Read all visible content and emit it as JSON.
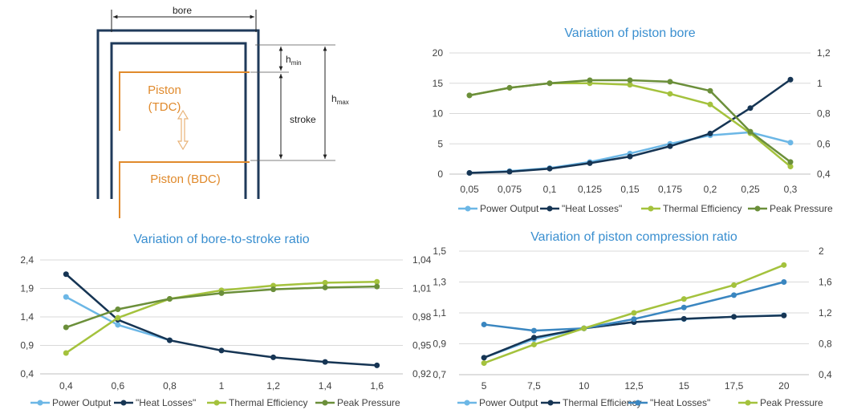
{
  "diagram": {
    "bore_label": "bore",
    "hmin_label": "h",
    "hmin_sub": "min",
    "hmax_label": "h",
    "hmax_sub": "max",
    "stroke_label": "stroke",
    "piston_tdc_line1": "Piston",
    "piston_tdc_line2": "(TDC)",
    "piston_bdc_label": "Piston (BDC)",
    "wall_color": "#1f3a5a",
    "piston_color": "#e08a2c"
  },
  "colors": {
    "power_output": "#6cb7e6",
    "heat_losses": "#163554",
    "thermal_efficiency": "#a4c23d",
    "peak_pressure": "#6b8f3a",
    "title": "#3a8fd0",
    "axis_text": "#404040",
    "grid": "#d9d9d9"
  },
  "chart_data": [
    {
      "type": "line",
      "title": "Variation of piston bore",
      "categories": [
        "0,05",
        "0,075",
        "0,1",
        "0,125",
        "0,15",
        "0,175",
        "0,2",
        "0,25",
        "0,3"
      ],
      "ylim": [
        0,
        20
      ],
      "yticks": [
        "0",
        "5",
        "10",
        "15",
        "20"
      ],
      "y2lim": [
        0.4,
        1.2
      ],
      "y2ticks": [
        "0,4",
        "0,6",
        "0,8",
        "1",
        "1,2"
      ],
      "legend": [
        "Power Output",
        "\"Heat Losses\"",
        "Thermal Efficiency",
        "Peak Pressure"
      ],
      "series": [
        {
          "name": "Power Output",
          "axis": "left",
          "color": "#6cb7e6",
          "values": [
            0.2,
            0.5,
            1.0,
            2.0,
            3.4,
            5.0,
            6.4,
            6.9,
            5.2
          ]
        },
        {
          "name": "\"Heat Losses\"",
          "axis": "left",
          "color": "#163554",
          "values": [
            0.2,
            0.4,
            0.9,
            1.8,
            2.9,
            4.6,
            6.7,
            10.9,
            15.6
          ]
        },
        {
          "name": "Thermal Efficiency",
          "axis": "right",
          "color": "#a4c23d",
          "values": [
            0.92,
            0.97,
            1.0,
            1.0,
            0.99,
            0.93,
            0.86,
            0.67,
            0.45
          ]
        },
        {
          "name": "Peak Pressure",
          "axis": "right",
          "color": "#6b8f3a",
          "values": [
            0.92,
            0.97,
            1.0,
            1.02,
            1.02,
            1.01,
            0.95,
            0.68,
            0.48
          ]
        }
      ]
    },
    {
      "type": "line",
      "title": "Variation of bore-to-stroke ratio",
      "categories": [
        "0,4",
        "0,6",
        "0,8",
        "1",
        "1,2",
        "1,4",
        "1,6"
      ],
      "ylim": [
        0.4,
        2.4
      ],
      "yticks": [
        "0,4",
        "0,9",
        "1,4",
        "1,9",
        "2,4"
      ],
      "y2lim": [
        0.92,
        1.04
      ],
      "y2ticks": [
        "0,92",
        "0,95",
        "0,98",
        "1,01",
        "1,04"
      ],
      "legend": [
        "Power Output",
        "\"Heat Losses\"",
        "Thermal Efficiency",
        "Peak Pressure"
      ],
      "series": [
        {
          "name": "Power Output",
          "axis": "left",
          "color": "#6cb7e6",
          "values": [
            1.75,
            1.26,
            0.99,
            null,
            null,
            null,
            null
          ]
        },
        {
          "name": "\"Heat Losses\"",
          "axis": "left",
          "color": "#163554",
          "values": [
            2.15,
            1.35,
            0.99,
            0.81,
            0.69,
            0.61,
            0.55
          ]
        },
        {
          "name": "Thermal Efficiency",
          "axis": "right",
          "color": "#a4c23d",
          "values": [
            0.942,
            0.979,
            0.999,
            1.008,
            1.013,
            1.016,
            1.017
          ]
        },
        {
          "name": "Peak Pressure",
          "axis": "right",
          "color": "#6b8f3a",
          "values": [
            0.969,
            0.988,
            0.999,
            1.005,
            1.009,
            1.011,
            1.012
          ]
        }
      ]
    },
    {
      "type": "line",
      "title": "Variation of piston compression ratio",
      "categories": [
        "5",
        "7,5",
        "10",
        "12,5",
        "15",
        "17,5",
        "20"
      ],
      "ylim": [
        0.7,
        1.5
      ],
      "yticks": [
        "0,7",
        "0,9",
        "1,1",
        "1,3",
        "1,5"
      ],
      "y2lim": [
        0.4,
        2.0
      ],
      "y2ticks": [
        "0,4",
        "0,8",
        "1,2",
        "1,6",
        "2"
      ],
      "legend": [
        "Power Output",
        "Thermal Efficiency",
        "\"Heat Losses\"",
        "Peak Pressure"
      ],
      "series": [
        {
          "name": "Power Output",
          "axis": "left",
          "color": "#6cb7e6",
          "values": [
            0.81,
            0.93,
            1.0,
            1.04,
            1.06,
            1.075,
            1.085
          ]
        },
        {
          "name": "Thermal Efficiency",
          "axis": "left",
          "color": "#163554",
          "values": [
            0.81,
            0.94,
            1.0,
            1.04,
            1.062,
            1.075,
            1.083
          ]
        },
        {
          "name": "\"Heat Losses\"",
          "axis": "right",
          "color": "#3a86c0",
          "values": [
            1.05,
            0.97,
            1.0,
            1.12,
            1.27,
            1.43,
            1.6
          ]
        },
        {
          "name": "Peak Pressure",
          "axis": "right",
          "color": "#a4c23d",
          "values": [
            0.55,
            0.79,
            1.0,
            1.2,
            1.38,
            1.56,
            1.82
          ]
        }
      ]
    }
  ]
}
